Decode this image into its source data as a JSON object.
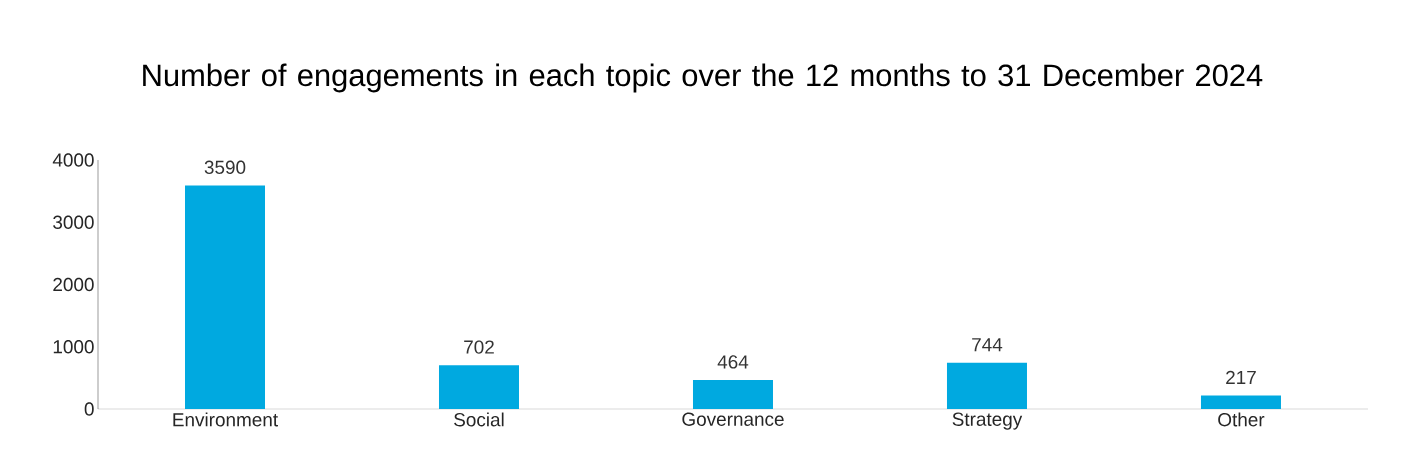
{
  "chart_data": {
    "type": "bar",
    "title": "Number of engagements in each topic over the 12 months to 31 December 2024",
    "categories": [
      "Environment",
      "Social",
      "Governance",
      "Strategy",
      "Other"
    ],
    "values": [
      3590,
      702,
      464,
      744,
      217
    ],
    "color": "#00a9e0",
    "ylim": [
      0,
      4000
    ],
    "yticks": [
      0,
      1000,
      2000,
      3000,
      4000
    ],
    "data_labels": true
  }
}
